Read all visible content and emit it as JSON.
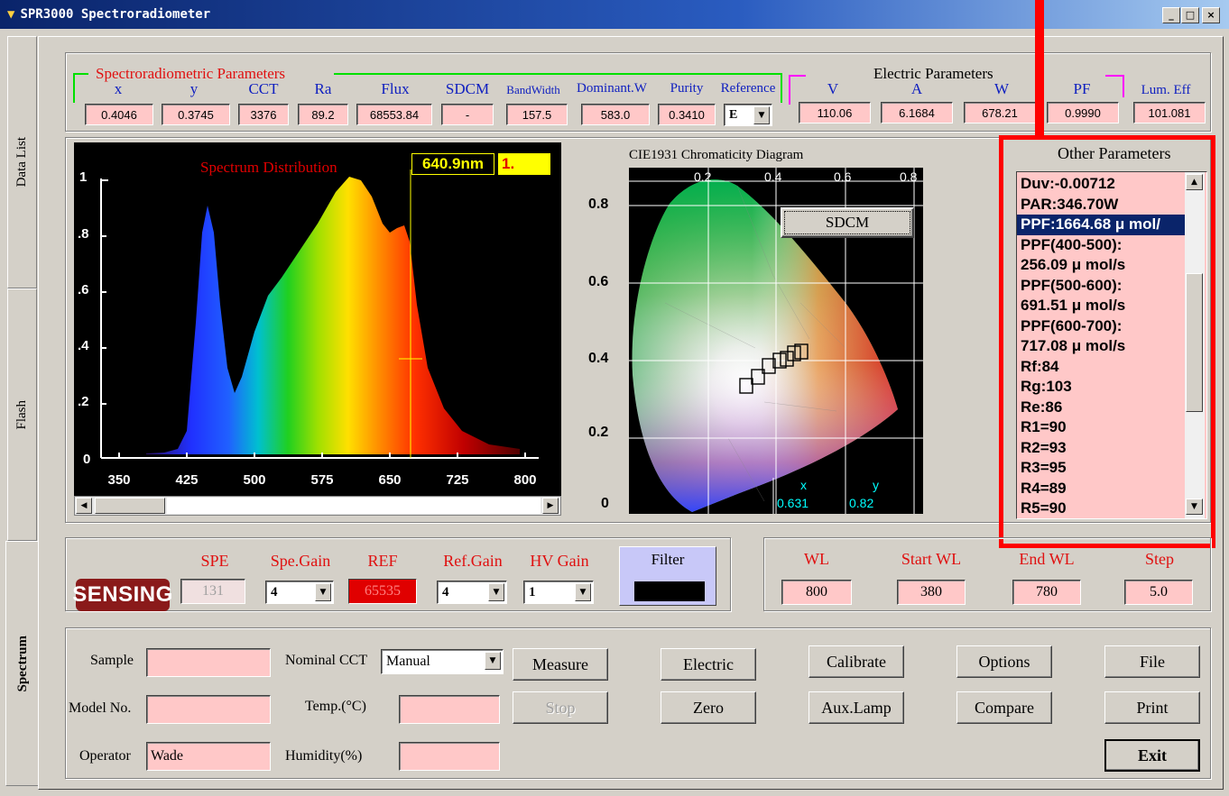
{
  "window": {
    "title": "SPR3000 Spectroradiometer",
    "min_label": "_",
    "max_label": "□",
    "close_label": "×"
  },
  "side_tabs": {
    "data_list": "Data List",
    "flash": "Flash",
    "spectrum": "Spectrum"
  },
  "spectro": {
    "group_label": "Spectroradiometric Parameters",
    "params": [
      {
        "label": "x",
        "value": "0.4046"
      },
      {
        "label": "y",
        "value": "0.3745"
      },
      {
        "label": "CCT",
        "value": "3376"
      },
      {
        "label": "Ra",
        "value": "89.2"
      },
      {
        "label": "Flux",
        "value": "68553.84"
      },
      {
        "label": "SDCM",
        "value": "-"
      },
      {
        "label": "BandWidth",
        "value": "157.5"
      },
      {
        "label": "Dominant.W",
        "value": "583.0"
      },
      {
        "label": "Purity",
        "value": "0.3410"
      },
      {
        "label": "Reference",
        "value": "E"
      }
    ]
  },
  "electric": {
    "group_label": "Electric Parameters",
    "params": [
      {
        "label": "V",
        "value": "110.06"
      },
      {
        "label": "A",
        "value": "6.1684"
      },
      {
        "label": "W",
        "value": "678.21"
      },
      {
        "label": "PF",
        "value": "0.9990"
      },
      {
        "label": "Lum. Eff",
        "value": "101.081"
      }
    ]
  },
  "spectrum_chart": {
    "title": "Spectrum Distribution",
    "cursor_wl": "640.9nm",
    "cursor_val": "1.",
    "y_ticks": [
      "1",
      ".8",
      ".6",
      ".4",
      ".2",
      "0"
    ],
    "x_ticks": [
      "350",
      "425",
      "500",
      "575",
      "650",
      "725",
      "800"
    ]
  },
  "cie": {
    "title": "CIE1931 Chromaticity Diagram",
    "sdcm_button": "SDCM",
    "top_ticks": [
      "0.2",
      "0.4",
      "0.6",
      "0.8"
    ],
    "left_ticks": [
      "0.8",
      "0.6",
      "0.4",
      "0.2",
      "0"
    ],
    "x_label": "x",
    "y_label": "y",
    "x_val": "0.631",
    "y_val": "0.82"
  },
  "other": {
    "title": "Other Parameters",
    "items": [
      "Duv:-0.00712",
      "PAR:346.70W",
      "PPF:1664.68 μ mol/",
      "PPF(400-500):",
      "256.09 μ mol/s",
      "PPF(500-600):",
      "691.51 μ mol/s",
      "PPF(600-700):",
      "717.08 μ mol/s",
      "Rf:84",
      "Rg:103",
      "Re:86",
      "R1=90",
      "R2=93",
      "R3=95",
      "R4=89",
      "R5=90"
    ]
  },
  "gain": {
    "logo": "SENSING",
    "spe_label": "SPE",
    "spe_value": "131",
    "spe_gain_label": "Spe.Gain",
    "spe_gain_value": "4",
    "ref_label": "REF",
    "ref_value": "65535",
    "ref_gain_label": "Ref.Gain",
    "ref_gain_value": "4",
    "hv_gain_label": "HV Gain",
    "hv_gain_value": "1",
    "filter_label": "Filter"
  },
  "wl": {
    "wl_label": "WL",
    "wl_value": "800",
    "start_label": "Start WL",
    "start_value": "380",
    "end_label": "End WL",
    "end_value": "780",
    "step_label": "Step",
    "step_value": "5.0"
  },
  "controls": {
    "sample_label": "Sample",
    "sample_value": "",
    "model_label": "Model No.",
    "model_value": "",
    "operator_label": "Operator",
    "operator_value": "Wade",
    "nominal_cct_label": "Nominal CCT",
    "nominal_cct_value": "Manual",
    "temp_label": "Temp.(°C)",
    "temp_value": "",
    "humidity_label": "Humidity(%)",
    "humidity_value": "",
    "measure": "Measure",
    "stop": "Stop",
    "electric": "Electric",
    "zero": "Zero",
    "calibrate": "Calibrate",
    "aux_lamp": "Aux.Lamp",
    "options": "Options",
    "compare": "Compare",
    "file": "File",
    "print": "Print",
    "exit": "Exit"
  },
  "colors": {
    "annotation_red": "#ff0000",
    "field_pink": "#ffc8c8",
    "label_blue": "#1020c0",
    "cursor_yellow": "#ffff00"
  }
}
